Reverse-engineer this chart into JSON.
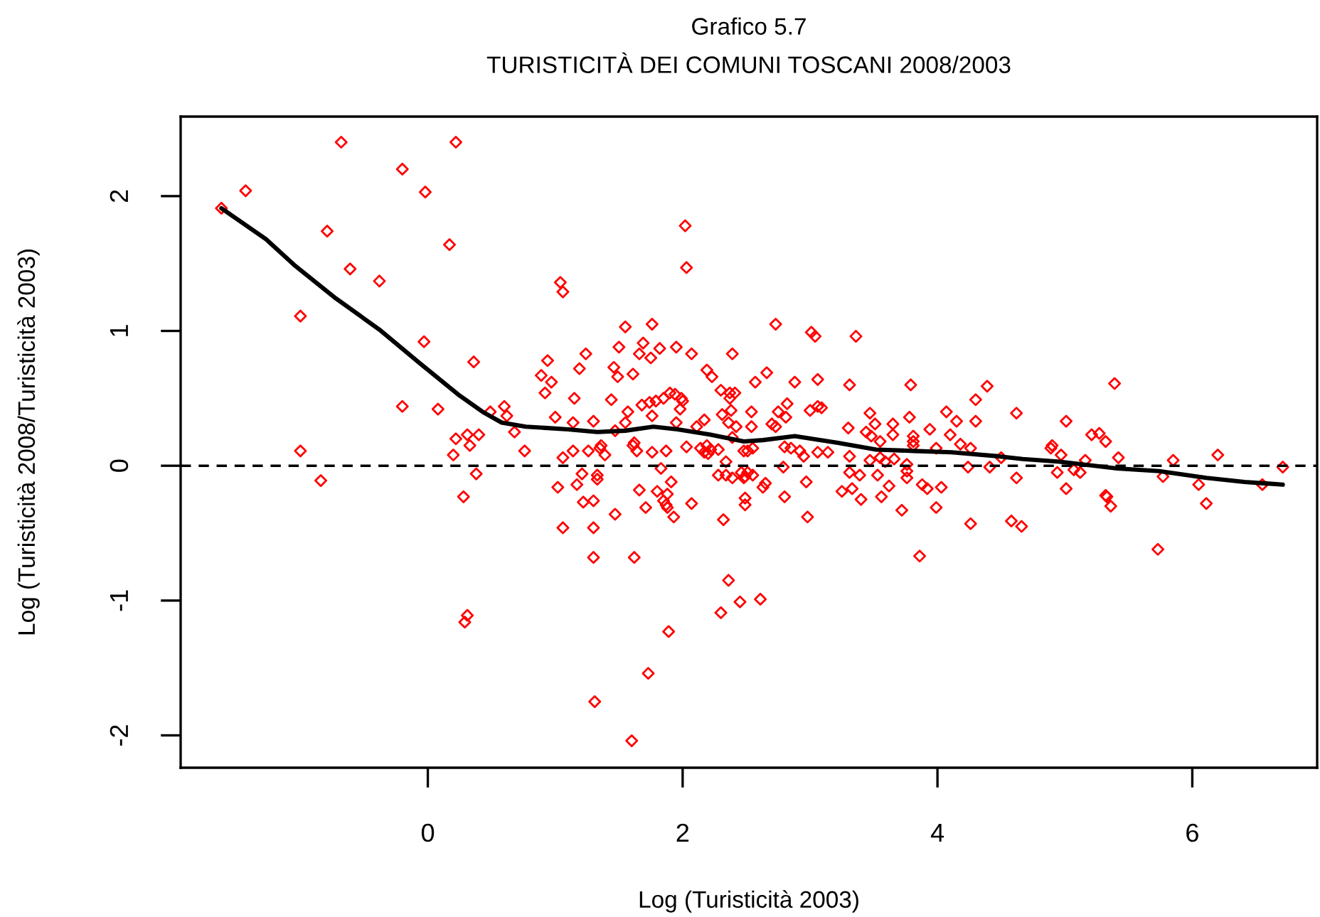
{
  "chart_data": {
    "type": "scatter",
    "title": "Grafico 5.7",
    "subtitle": "TURISTICITÀ DEI COMUNI TOSCANI 2008/2003",
    "xlabel": "Log (Turisticità 2003)",
    "ylabel": "Log (Turisticità 2008/Turisticità 2003)",
    "xlim": [
      -1.94,
      6.98
    ],
    "ylim": [
      -2.24,
      2.59
    ],
    "xticks": [
      0,
      2,
      4,
      6
    ],
    "yticks": [
      -2,
      -1,
      0,
      1,
      2
    ],
    "ref_lines": [
      {
        "axis": "y",
        "value": 0,
        "line_style": "dashed",
        "color": "#000000"
      }
    ],
    "series": [
      {
        "color": "#ff0000",
        "marker": "diamond",
        "x": [
          -1.62,
          -1.43,
          -0.68,
          0.22,
          -0.2,
          -0.02,
          -0.79,
          0.17,
          -0.61,
          -0.38,
          -1.0,
          1.04,
          1.06,
          -0.03,
          0.36,
          0.94,
          0.89,
          0.97,
          0.92,
          -0.2,
          0.08,
          0.6,
          0.49,
          0.62,
          1.0,
          0.68,
          0.22,
          0.31,
          0.4,
          0.33,
          -1.0,
          0.2,
          0.76,
          -0.84,
          1.06,
          0.38,
          0.28,
          1.02,
          1.06,
          0.31,
          0.29,
          1.14,
          1.26,
          1.35,
          1.39,
          1.17,
          1.21,
          1.33,
          1.33,
          1.22,
          1.3,
          1.3,
          1.47,
          1.3,
          1.62,
          1.66,
          1.71,
          1.64,
          1.61,
          1.76,
          1.87,
          1.83,
          1.8,
          1.88,
          1.87,
          1.88,
          1.85,
          1.91,
          1.93,
          1.89,
          1.73,
          1.31,
          1.6,
          2.07,
          2.03,
          2.14,
          2.17,
          2.19,
          2.22,
          2.2,
          2.28,
          2.34,
          2.28,
          2.34,
          2.39,
          2.32,
          2.36,
          2.3,
          2.45,
          2.61,
          2.46,
          2.49,
          2.51,
          2.48,
          2.55,
          2.49,
          2.49,
          2.48,
          2.51,
          2.55,
          2.63,
          2.65,
          2.79,
          2.8,
          2.8,
          2.85,
          2.92,
          2.95,
          2.97,
          2.98,
          3.06,
          3.14,
          3.31,
          3.25,
          3.33,
          3.4,
          3.31,
          3.39,
          3.47,
          3.55,
          3.59,
          3.66,
          3.53,
          3.62,
          3.56,
          3.72,
          3.76,
          3.76,
          3.76,
          3.81,
          3.86,
          3.88,
          3.92,
          4.03,
          3.99,
          3.99,
          2.02,
          2.03,
          1.55,
          1.76,
          2.73,
          3.01,
          3.04,
          3.36,
          1.5,
          1.69,
          1.82,
          1.95,
          1.66,
          1.75,
          2.07,
          2.39,
          1.24,
          1.19,
          1.46,
          1.49,
          1.61,
          2.19,
          2.23,
          2.3,
          2.57,
          2.66,
          2.88,
          3.06,
          3.31,
          3.79,
          1.15,
          1.44,
          2.37,
          2.41,
          2.37,
          1.68,
          1.74,
          1.79,
          1.85,
          1.9,
          1.94,
          1.99,
          2.0,
          1.76,
          1.98,
          1.57,
          1.55,
          1.14,
          1.3,
          1.47,
          1.95,
          2.11,
          2.17,
          2.31,
          2.38,
          2.36,
          2.42,
          2.39,
          2.54,
          2.54,
          2.75,
          2.82,
          2.81,
          2.7,
          2.73,
          3.0,
          3.06,
          3.09,
          3.3,
          3.47,
          3.51,
          3.44,
          3.55,
          3.48,
          3.65,
          3.65,
          3.78,
          3.81,
          3.81,
          3.94,
          4.07,
          1.36,
          1.62,
          4.39,
          4.3,
          4.15,
          4.1,
          4.3,
          4.62,
          5.01,
          5.39,
          5.21,
          5.27,
          5.32,
          4.89,
          4.18,
          4.26,
          4.24,
          4.41,
          4.5,
          4.62,
          4.9,
          4.97,
          4.94,
          5.01,
          5.07,
          5.12,
          5.16,
          5.42,
          5.32,
          5.33,
          5.36,
          5.73,
          5.77,
          5.85,
          6.05,
          6.11,
          6.2,
          6.55,
          6.71,
          4.26,
          4.58,
          4.66
        ],
        "values": [
          1.91,
          2.04,
          2.4,
          2.4,
          2.2,
          2.03,
          1.74,
          1.64,
          1.46,
          1.37,
          1.11,
          1.36,
          1.29,
          0.92,
          0.77,
          0.78,
          0.67,
          0.62,
          0.54,
          0.44,
          0.42,
          0.44,
          0.4,
          0.37,
          0.36,
          0.25,
          0.2,
          0.23,
          0.23,
          0.15,
          0.11,
          0.08,
          0.11,
          -0.11,
          0.06,
          -0.06,
          -0.23,
          -0.16,
          -0.46,
          -1.11,
          -1.16,
          0.11,
          0.11,
          0.13,
          0.08,
          -0.14,
          -0.06,
          -0.07,
          -0.1,
          -0.27,
          -0.26,
          -0.46,
          -0.36,
          -0.68,
          -0.68,
          -0.18,
          -0.31,
          0.11,
          0.15,
          0.1,
          0.11,
          -0.02,
          -0.19,
          -0.21,
          -0.29,
          -0.31,
          -0.26,
          -0.12,
          -0.38,
          -1.23,
          -1.54,
          -1.75,
          -2.04,
          -0.28,
          0.14,
          0.13,
          0.1,
          0.15,
          0.12,
          0.09,
          0.12,
          0.03,
          -0.07,
          -0.07,
          -0.09,
          -0.4,
          -0.85,
          -1.09,
          -1.01,
          -0.99,
          -0.05,
          -0.08,
          -0.05,
          -0.09,
          -0.07,
          -0.24,
          -0.29,
          0.11,
          0.11,
          0.13,
          -0.16,
          -0.13,
          -0.01,
          -0.23,
          0.14,
          0.13,
          0.11,
          0.07,
          -0.12,
          -0.38,
          0.1,
          0.1,
          0.07,
          -0.19,
          -0.17,
          -0.25,
          -0.05,
          -0.07,
          0.04,
          0.06,
          0.03,
          0.05,
          -0.07,
          -0.15,
          -0.23,
          -0.33,
          -0.09,
          -0.04,
          0.01,
          0.15,
          -0.67,
          -0.14,
          -0.17,
          -0.16,
          -0.31,
          0.13,
          1.78,
          1.47,
          1.03,
          1.05,
          1.05,
          0.99,
          0.96,
          0.96,
          0.88,
          0.91,
          0.87,
          0.88,
          0.83,
          0.8,
          0.83,
          0.83,
          0.83,
          0.72,
          0.73,
          0.66,
          0.68,
          0.71,
          0.66,
          0.56,
          0.62,
          0.69,
          0.62,
          0.64,
          0.6,
          0.6,
          0.5,
          0.49,
          0.54,
          0.54,
          0.5,
          0.45,
          0.47,
          0.48,
          0.5,
          0.54,
          0.53,
          0.5,
          0.48,
          0.37,
          0.42,
          0.4,
          0.32,
          0.32,
          0.33,
          0.26,
          0.32,
          0.29,
          0.34,
          0.38,
          0.41,
          0.32,
          0.29,
          0.21,
          0.4,
          0.29,
          0.4,
          0.46,
          0.36,
          0.31,
          0.29,
          0.41,
          0.44,
          0.43,
          0.28,
          0.39,
          0.31,
          0.25,
          0.18,
          0.22,
          0.31,
          0.23,
          0.36,
          0.18,
          0.22,
          0.27,
          0.4,
          0.15,
          0.17,
          0.59,
          0.49,
          0.33,
          0.23,
          0.33,
          0.39,
          0.33,
          0.61,
          0.23,
          0.24,
          0.18,
          0.13,
          0.16,
          0.13,
          -0.01,
          -0.01,
          0.06,
          -0.09,
          0.15,
          0.08,
          -0.05,
          -0.17,
          -0.03,
          -0.05,
          0.04,
          0.06,
          -0.22,
          -0.23,
          -0.3,
          -0.62,
          -0.08,
          0.04,
          -0.14,
          -0.28,
          0.08,
          -0.14,
          -0.01,
          -0.43,
          -0.41,
          -0.45
        ]
      },
      {
        "type": "line",
        "color": "#000000",
        "x": [
          -1.62,
          -1.27,
          -1.05,
          -0.72,
          -0.38,
          -0.05,
          0.25,
          0.43,
          0.58,
          0.77,
          1.1,
          1.33,
          1.55,
          1.77,
          1.96,
          2.22,
          2.48,
          2.63,
          2.88,
          3.22,
          3.52,
          3.81,
          4.11,
          4.48,
          4.67,
          4.96,
          5.41,
          5.74,
          6.11,
          6.41,
          6.71
        ],
        "values": [
          1.91,
          1.68,
          1.49,
          1.24,
          1.01,
          0.75,
          0.52,
          0.4,
          0.32,
          0.29,
          0.27,
          0.25,
          0.26,
          0.29,
          0.27,
          0.23,
          0.18,
          0.19,
          0.22,
          0.17,
          0.12,
          0.11,
          0.1,
          0.07,
          0.05,
          0.03,
          -0.02,
          -0.04,
          -0.09,
          -0.12,
          -0.14
        ]
      }
    ]
  }
}
